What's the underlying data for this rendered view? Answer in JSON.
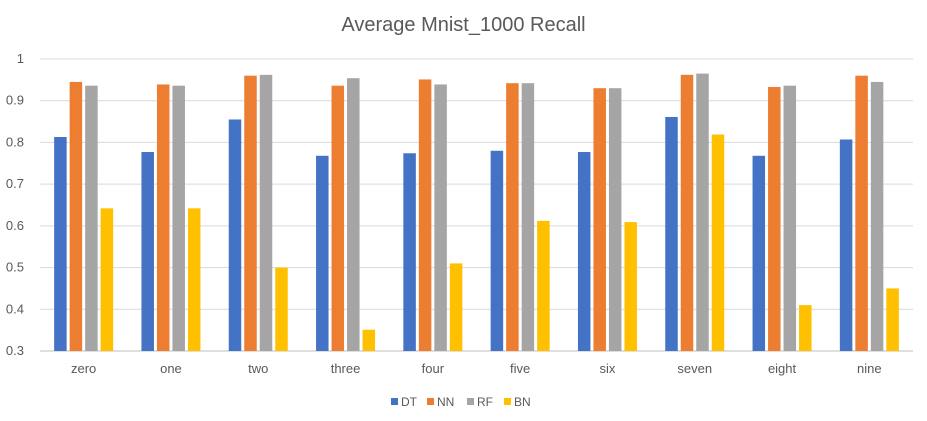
{
  "chart_data": {
    "type": "bar",
    "title": "Average Mnist_1000 Recall",
    "xlabel": "",
    "ylabel": "",
    "ylim": [
      0.3,
      1
    ],
    "yticks": [
      "0.3",
      "0.4",
      "0.5",
      "0.6",
      "0.7",
      "0.8",
      "0.9",
      "1"
    ],
    "grid": true,
    "legend_position": "bottom",
    "categories": [
      "zero",
      "one",
      "two",
      "three",
      "four",
      "five",
      "six",
      "seven",
      "eight",
      "nine"
    ],
    "series": [
      {
        "name": "DT",
        "color": "#4472C4",
        "values": [
          0.813,
          0.777,
          0.855,
          0.768,
          0.774,
          0.78,
          0.777,
          0.861,
          0.768,
          0.807
        ]
      },
      {
        "name": "NN",
        "color": "#ED7D31",
        "values": [
          0.945,
          0.939,
          0.96,
          0.936,
          0.951,
          0.942,
          0.93,
          0.962,
          0.933,
          0.96
        ]
      },
      {
        "name": "RF",
        "color": "#A5A5A5",
        "values": [
          0.936,
          0.936,
          0.962,
          0.954,
          0.939,
          0.942,
          0.93,
          0.965,
          0.936,
          0.945
        ]
      },
      {
        "name": "BN",
        "color": "#FFC000",
        "values": [
          0.642,
          0.642,
          0.5,
          0.351,
          0.51,
          0.612,
          0.609,
          0.819,
          0.41,
          0.45
        ]
      }
    ]
  }
}
